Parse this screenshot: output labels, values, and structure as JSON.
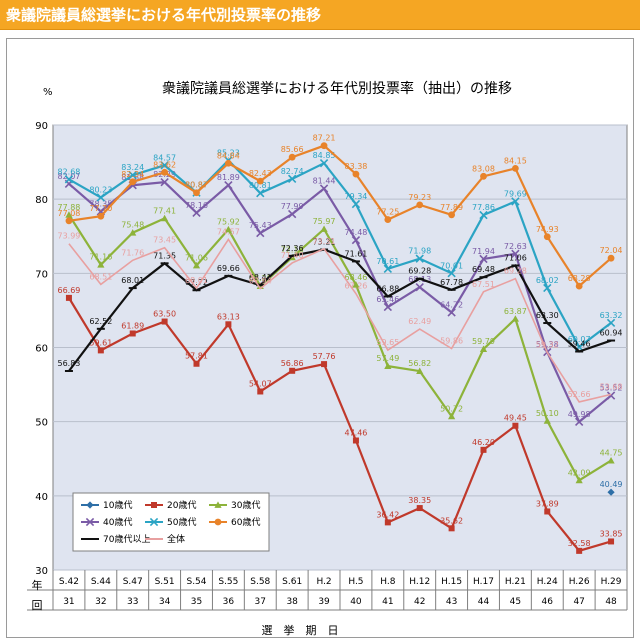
{
  "header": {
    "title": "衆議院議員総選挙における年代別投票率の推移"
  },
  "chart_data": {
    "type": "line",
    "title": "衆議院議員総選挙における年代別投票率（抽出）の推移",
    "ylabel": "%",
    "xlabel": "選　挙　期　日",
    "ylim": [
      30,
      90
    ],
    "yticks": [
      30,
      40,
      50,
      60,
      70,
      80,
      90
    ],
    "grid": true,
    "legend_position": "bottom-left",
    "row_label_top": "年",
    "row_label_bottom": "回",
    "categories": [
      "S.42",
      "S.44",
      "S.47",
      "S.51",
      "S.54",
      "S.55",
      "S.58",
      "S.61",
      "H.2",
      "H.5",
      "H.8",
      "H.12",
      "H.15",
      "H.17",
      "H.21",
      "H.24",
      "H.26",
      "H.29"
    ],
    "sessions": [
      "31",
      "32",
      "33",
      "34",
      "35",
      "36",
      "37",
      "38",
      "39",
      "40",
      "41",
      "42",
      "43",
      "44",
      "45",
      "46",
      "47",
      "48"
    ],
    "series": [
      {
        "name": "10歳代",
        "color": "#2e6fa7",
        "marker": "diamond",
        "values": [
          null,
          null,
          null,
          null,
          null,
          null,
          null,
          null,
          null,
          null,
          null,
          null,
          null,
          null,
          null,
          null,
          null,
          40.49
        ],
        "labels": [
          "",
          "",
          "",
          "",
          "",
          "",
          "",
          "",
          "",
          "",
          "",
          "",
          "",
          "",
          "",
          "",
          "",
          "40.49"
        ]
      },
      {
        "name": "20歳代",
        "color": "#c0392b",
        "marker": "square",
        "values": [
          66.69,
          59.61,
          61.89,
          63.5,
          57.81,
          63.13,
          54.07,
          56.86,
          57.76,
          47.46,
          36.42,
          38.35,
          35.62,
          46.2,
          49.45,
          37.89,
          32.58,
          33.85
        ],
        "labels": [
          "66.69",
          "59.61",
          "61.89",
          "63.50",
          "57.81",
          "63.13",
          "54.07",
          "56.86",
          "57.76",
          "47.46",
          "36.42",
          "38.35",
          "35.62",
          "46.20",
          "49.45",
          "37.89",
          "32.58",
          "33.85"
        ]
      },
      {
        "name": "30歳代",
        "color": "#8db33a",
        "marker": "triangle",
        "values": [
          77.88,
          71.16,
          75.48,
          77.41,
          71.06,
          75.92,
          68.28,
          72.15,
          75.97,
          68.46,
          57.49,
          56.82,
          50.72,
          59.79,
          63.87,
          50.1,
          42.09,
          44.75
        ],
        "labels": [
          "77.88",
          "71.16",
          "75.48",
          "77.41",
          "71.06",
          "75.92",
          "68.28",
          "72.15",
          "75.97",
          "68.46",
          "57.49",
          "56.82",
          "50.72",
          "59.79",
          "63.87",
          "50.10",
          "42.09",
          "44.75"
        ]
      },
      {
        "name": "40歳代",
        "color": "#7a5ba6",
        "marker": "x",
        "values": [
          82.07,
          78.35,
          81.88,
          82.29,
          78.16,
          81.89,
          75.43,
          77.99,
          81.44,
          74.48,
          65.46,
          68.13,
          64.72,
          71.94,
          72.63,
          59.38,
          49.98,
          53.52
        ],
        "labels": [
          "82.07",
          "78.35",
          "81.88",
          "82.29",
          "78.16",
          "81.89",
          "75.43",
          "77.99",
          "81.44",
          "74.48",
          "65.46",
          "68.13",
          "64.72",
          "71.94",
          "72.63",
          "59.38",
          "49.98",
          "53.52"
        ]
      },
      {
        "name": "50歳代",
        "color": "#2ba4c4",
        "marker": "x",
        "values": [
          82.68,
          80.23,
          83.24,
          84.57,
          80.87,
          85.23,
          80.81,
          82.74,
          84.85,
          79.34,
          70.61,
          71.98,
          70.01,
          77.86,
          79.69,
          68.02,
          60.07,
          63.32
        ],
        "labels": [
          "82.68",
          "80.23",
          "83.24",
          "84.57",
          "80.87",
          "85.23",
          "80.81",
          "82.74",
          "84.85",
          "79.34",
          "70.61",
          "71.98",
          "70.01",
          "77.86",
          "79.69",
          "68.02",
          "60.07",
          "63.32"
        ]
      },
      {
        "name": "60歳代",
        "color": "#e8832a",
        "marker": "circle",
        "values": [
          77.08,
          77.7,
          82.34,
          83.62,
          80.87,
          84.84,
          82.43,
          85.66,
          87.21,
          83.38,
          77.25,
          79.23,
          77.89,
          83.08,
          84.15,
          74.93,
          68.28,
          72.04
        ],
        "labels": [
          "77.08",
          "77.70",
          "82.34",
          "83.62",
          "80.87",
          "84.84",
          "82.43",
          "85.66",
          "87.21",
          "83.38",
          "77.25",
          "79.23",
          "77.89",
          "83.08",
          "84.15",
          "74.93",
          "68.28",
          "72.04"
        ]
      },
      {
        "name": "70歳代以上",
        "color": "#111111",
        "marker": "dash",
        "values": [
          56.83,
          62.52,
          68.01,
          71.35,
          67.72,
          69.66,
          68.41,
          72.36,
          73.21,
          71.61,
          66.88,
          69.28,
          67.78,
          69.48,
          71.06,
          63.3,
          59.46,
          60.94
        ],
        "labels": [
          "56.83",
          "62.52",
          "68.01",
          "71.35",
          "67.72",
          "69.66",
          "68.41",
          "72.36",
          "73.21",
          "71.61",
          "66.88",
          "69.28",
          "67.78",
          "69.48",
          "71.06",
          "63.30",
          "59.46",
          "60.94"
        ]
      },
      {
        "name": "全体",
        "color": "#e8a0a0",
        "marker": "none",
        "values": [
          73.99,
          68.51,
          71.76,
          73.45,
          68.01,
          74.57,
          67.94,
          71.4,
          73.31,
          67.26,
          59.65,
          62.49,
          59.86,
          67.51,
          69.28,
          59.32,
          52.66,
          53.68
        ],
        "labels": [
          "73.99",
          "68.51",
          "71.76",
          "73.45",
          "68.01",
          "74.57",
          "67.94",
          "71.40",
          "73.31",
          "67.26",
          "59.65",
          "62.49",
          "59.86",
          "67.51",
          "69.28",
          "59.32",
          "52.66",
          "53.68"
        ]
      }
    ]
  }
}
